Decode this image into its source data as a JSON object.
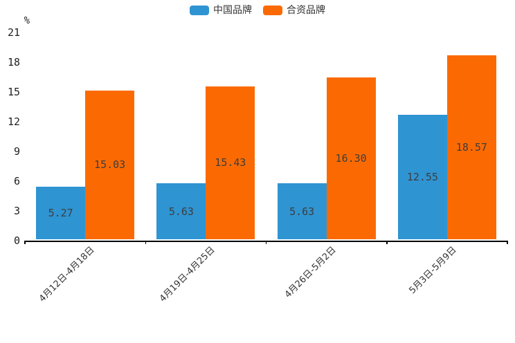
{
  "legend": {
    "items": [
      {
        "label": "中国品牌",
        "color": "#2f94d2"
      },
      {
        "label": "合资品牌",
        "color": "#fb6a02"
      }
    ]
  },
  "chart_data": {
    "type": "bar",
    "title": "",
    "categories": [
      "4月12日-4月18日",
      "4月19日-4月25日",
      "4月26日-5月2日",
      "5月3日-5月9日"
    ],
    "series": [
      {
        "name": "中国品牌",
        "color": "#2f94d2",
        "values": [
          5.27,
          5.63,
          5.63,
          12.55
        ]
      },
      {
        "name": "合资品牌",
        "color": "#fb6a02",
        "values": [
          15.03,
          15.43,
          16.3,
          18.57
        ]
      }
    ],
    "value_labels": [
      "5.27",
      "5.63",
      "5.63",
      "12.55",
      "15.03",
      "15.43",
      "16.30",
      "18.57"
    ],
    "xlabel": "",
    "ylabel": "%",
    "ylim": [
      0,
      21
    ],
    "yticks": [
      0,
      3,
      6,
      9,
      12,
      15,
      18,
      21
    ],
    "grid": false,
    "legend_position": "top-center",
    "value_label_position": "inside-center"
  }
}
